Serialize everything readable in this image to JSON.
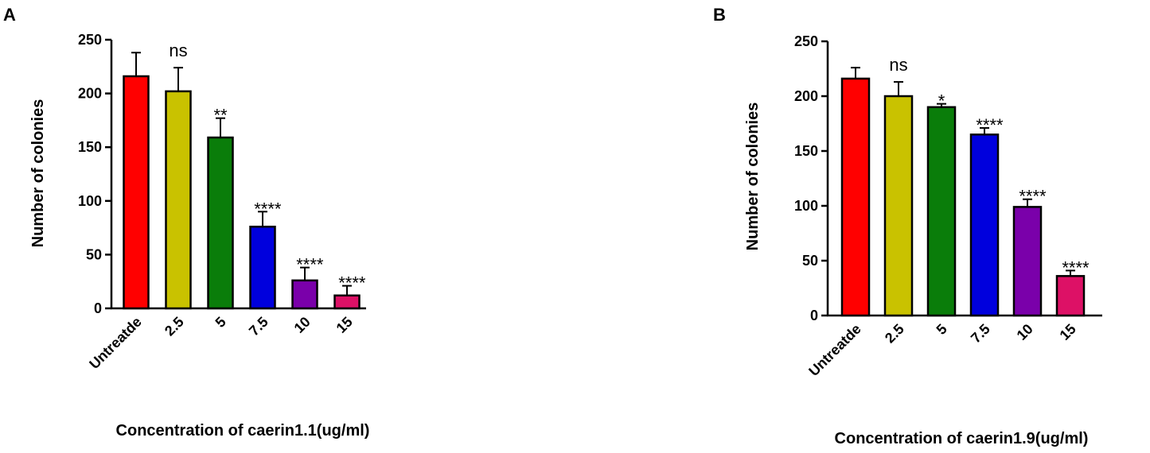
{
  "chart_data": [
    {
      "panel": "A",
      "type": "bar",
      "categories": [
        "Untreatde",
        "2.5",
        "5",
        "7.5",
        "10",
        "15"
      ],
      "values": [
        216,
        202,
        159,
        76,
        26,
        12
      ],
      "errors": [
        22,
        22,
        18,
        14,
        12,
        9
      ],
      "significance": [
        "",
        "ns",
        "**",
        "****",
        "****",
        "****"
      ],
      "colors": [
        "#ff0000",
        "#c9c200",
        "#0a7d0a",
        "#0000dd",
        "#7a00aa",
        "#dd1166"
      ],
      "xlabel": "Concentration of caerin1.1(ug/ml)",
      "ylabel": "Number of colonies",
      "ylim": [
        0,
        250
      ],
      "yticks": [
        0,
        50,
        100,
        150,
        200,
        250
      ],
      "grid": false
    },
    {
      "panel": "B",
      "type": "bar",
      "categories": [
        "Untreatde",
        "2.5",
        "5",
        "7.5",
        "10",
        "15"
      ],
      "values": [
        216,
        200,
        190,
        165,
        99,
        36
      ],
      "errors": [
        10,
        13,
        3,
        6,
        7,
        5
      ],
      "significance": [
        "",
        "ns",
        "*",
        "****",
        "****",
        "****"
      ],
      "colors": [
        "#ff0000",
        "#c9c200",
        "#0a7d0a",
        "#0000dd",
        "#7a00aa",
        "#dd1166"
      ],
      "xlabel": "Concentration of caerin1.9(ug/ml)",
      "ylabel": "Number of colonies",
      "ylim": [
        0,
        250
      ],
      "yticks": [
        0,
        50,
        100,
        150,
        200,
        250
      ],
      "grid": false
    }
  ]
}
